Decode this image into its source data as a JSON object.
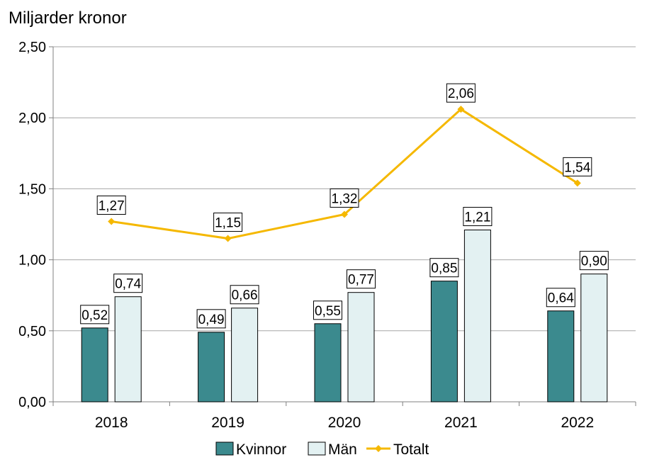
{
  "chart_data": {
    "type": "bar",
    "ylabel": "Miljarder kronor",
    "categories": [
      "2018",
      "2019",
      "2020",
      "2021",
      "2022"
    ],
    "ylim": [
      0,
      2.5
    ],
    "yticks": [
      0,
      0.5,
      1.0,
      1.5,
      2.0,
      2.5
    ],
    "ytick_labels": [
      "0,00",
      "0,50",
      "1,00",
      "1,50",
      "2,00",
      "2,50"
    ],
    "grid": true,
    "legend_position": "bottom",
    "series": [
      {
        "name": "Kvinnor",
        "type": "bar",
        "color": "#3b8a8e",
        "values": [
          0.52,
          0.49,
          0.55,
          0.85,
          0.64
        ],
        "labels": [
          "0,52",
          "0,49",
          "0,55",
          "0,85",
          "0,64"
        ]
      },
      {
        "name": "Män",
        "type": "bar",
        "color": "#e3f1f2",
        "values": [
          0.74,
          0.66,
          0.77,
          1.21,
          0.9
        ],
        "labels": [
          "0,74",
          "0,66",
          "0,77",
          "1,21",
          "0,90"
        ]
      },
      {
        "name": "Totalt",
        "type": "line",
        "color": "#f5b800",
        "values": [
          1.27,
          1.15,
          1.32,
          2.06,
          1.54
        ],
        "labels": [
          "1,27",
          "1,15",
          "1,32",
          "2,06",
          "1,54"
        ]
      }
    ]
  }
}
